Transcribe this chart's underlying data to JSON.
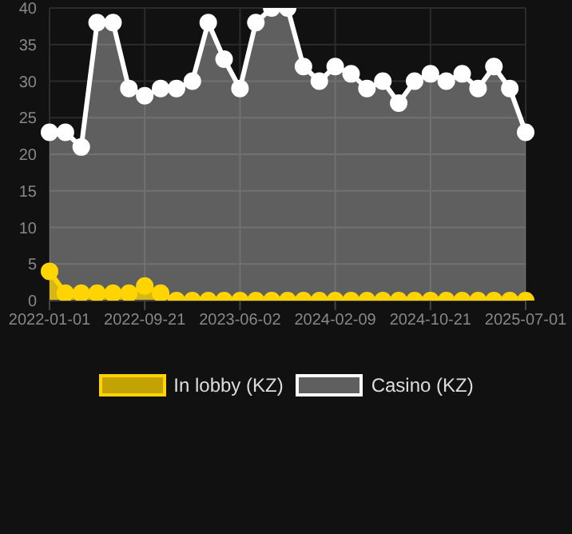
{
  "chart_data": {
    "type": "area",
    "categories": [
      "2022-01-01",
      null,
      null,
      null,
      null,
      null,
      "2022-09-21",
      null,
      null,
      null,
      null,
      null,
      "2023-06-02",
      null,
      null,
      null,
      null,
      null,
      "2024-02-09",
      null,
      null,
      null,
      null,
      null,
      "2024-10-21",
      null,
      null,
      null,
      null,
      null,
      "2025-07-01"
    ],
    "series": [
      {
        "name": "In lobby (KZ)",
        "color": "#ffd400",
        "values": [
          4,
          1,
          1,
          1,
          1,
          1,
          2,
          1,
          0,
          0,
          0,
          0,
          0,
          0,
          0,
          0,
          0,
          0,
          0,
          0,
          0,
          0,
          0,
          0,
          0,
          0,
          0,
          0,
          0,
          0,
          0
        ]
      },
      {
        "name": "Casino (KZ)",
        "color": "#ffffff",
        "values": [
          23,
          23,
          21,
          38,
          38,
          29,
          28,
          29,
          29,
          30,
          38,
          33,
          29,
          38,
          40,
          40,
          32,
          30,
          32,
          31,
          29,
          30,
          27,
          30,
          31,
          30,
          31,
          29,
          32,
          29,
          23
        ]
      }
    ],
    "ylim": [
      0,
      40
    ],
    "yticks": [
      0,
      5,
      10,
      15,
      20,
      25,
      30,
      35,
      40
    ],
    "grid": true,
    "legend": "bottom",
    "marker": "circle"
  }
}
